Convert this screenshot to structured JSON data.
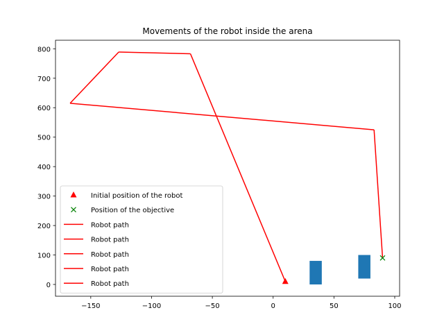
{
  "chart_data": {
    "type": "line",
    "title": "Movements of the robot inside the arena",
    "xlabel": "",
    "ylabel": "",
    "xlim": [
      -179,
      104
    ],
    "ylim": [
      -40,
      829
    ],
    "xticks": [
      -150,
      -100,
      -50,
      0,
      50,
      100
    ],
    "yticks": [
      0,
      100,
      200,
      300,
      400,
      500,
      600,
      700,
      800
    ],
    "grid": false,
    "legend_position": "lower-left",
    "initial_position": {
      "label": "Initial position of the robot",
      "x": 10,
      "y": 10,
      "marker": "triangle",
      "color": "#ff0000"
    },
    "objective": {
      "label": "Position of the objective",
      "x": 90,
      "y": 90,
      "marker": "x",
      "color": "#008000"
    },
    "path_color": "#ff0000",
    "path_segments": [
      {
        "name": "Robot path",
        "points": [
          [
            10,
            10
          ],
          [
            -68,
            783
          ]
        ]
      },
      {
        "name": "Robot path",
        "points": [
          [
            -68,
            783
          ],
          [
            -127,
            789
          ]
        ]
      },
      {
        "name": "Robot path",
        "points": [
          [
            -127,
            789
          ],
          [
            -167,
            615
          ]
        ]
      },
      {
        "name": "Robot path",
        "points": [
          [
            -167,
            615
          ],
          [
            83,
            525
          ]
        ]
      },
      {
        "name": "Robot path",
        "points": [
          [
            83,
            525
          ],
          [
            90,
            90
          ]
        ]
      }
    ],
    "obstacles": [
      {
        "x": [
          30,
          40
        ],
        "y": [
          0,
          80
        ],
        "color": "#1f77b4"
      },
      {
        "x": [
          70,
          80
        ],
        "y": [
          20,
          100
        ],
        "color": "#1f77b4"
      }
    ]
  }
}
